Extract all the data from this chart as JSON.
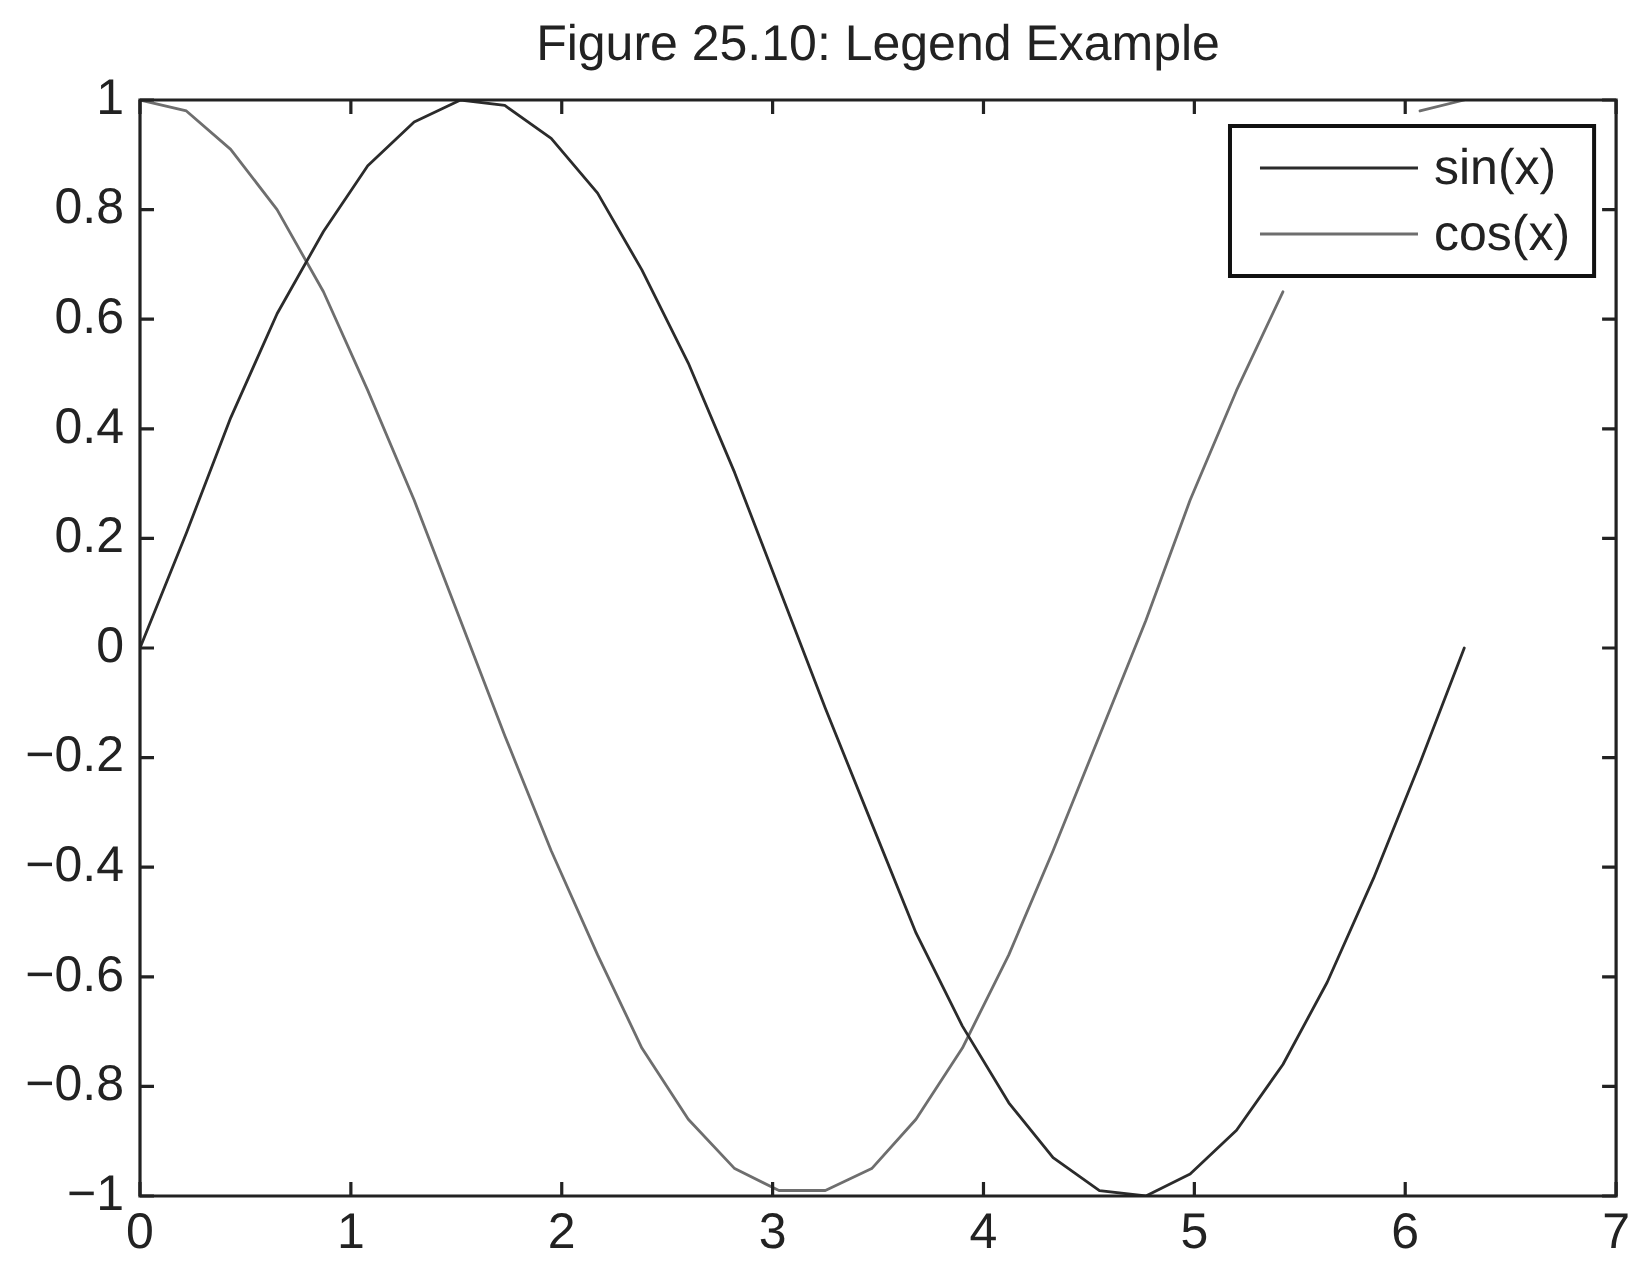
{
  "chart_data": {
    "type": "line",
    "title": "Figure 25.10: Legend Example",
    "x": [
      0,
      0.22,
      0.43,
      0.65,
      0.87,
      1.08,
      1.3,
      1.52,
      1.73,
      1.95,
      2.17,
      2.38,
      2.6,
      2.82,
      3.03,
      3.25,
      3.47,
      3.68,
      3.9,
      4.12,
      4.33,
      4.55,
      4.77,
      4.98,
      5.2,
      5.42,
      5.63,
      5.85,
      6.07,
      6.28
    ],
    "series": [
      {
        "name": "sin(x)",
        "color": "#2b2b2b",
        "values": [
          0,
          0.21,
          0.42,
          0.61,
          0.76,
          0.88,
          0.96,
          1.0,
          0.99,
          0.93,
          0.83,
          0.69,
          0.52,
          0.32,
          0.11,
          -0.11,
          -0.32,
          -0.52,
          -0.69,
          -0.83,
          -0.93,
          -0.99,
          -1.0,
          -0.96,
          -0.88,
          -0.76,
          -0.61,
          -0.42,
          -0.21,
          0
        ]
      },
      {
        "name": "cos(x)",
        "color": "#6e6e6e",
        "values": [
          1,
          0.98,
          0.91,
          0.8,
          0.65,
          0.47,
          0.27,
          0.05,
          -0.16,
          -0.37,
          -0.56,
          -0.73,
          -0.86,
          -0.95,
          -0.99,
          -0.99,
          -0.95,
          -0.86,
          -0.73,
          -0.56,
          -0.37,
          -0.16,
          0.05,
          0.27,
          0.47,
          0.65,
          null,
          null,
          0.98,
          1
        ]
      }
    ],
    "xlim": [
      0,
      7
    ],
    "xticks": [
      0,
      1,
      2,
      3,
      4,
      5,
      6,
      7
    ],
    "ylim": [
      -1,
      1
    ],
    "yticks": [
      {
        "value": -1,
        "label": "−1"
      },
      {
        "value": -0.8,
        "label": "−0.8"
      },
      {
        "value": -0.6,
        "label": "−0.6"
      },
      {
        "value": -0.4,
        "label": "−0.4"
      },
      {
        "value": -0.2,
        "label": "−0.2"
      },
      0,
      0.2,
      0.4,
      0.6,
      0.8,
      1
    ],
    "legend": "top right",
    "marker": "none",
    "line_style": "solid"
  }
}
